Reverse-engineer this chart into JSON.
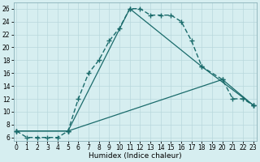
{
  "xlabel": "Humidex (Indice chaleur)",
  "background_color": "#d6eef0",
  "grid_color": "#b8d8dc",
  "line_color": "#1a6b6b",
  "series1": {
    "x": [
      0,
      1,
      2,
      3,
      4,
      5,
      6,
      7,
      8,
      9,
      10,
      11,
      12,
      13,
      14,
      15,
      16,
      17,
      18,
      20,
      21,
      22,
      23
    ],
    "y": [
      7,
      6,
      6,
      6,
      6,
      7,
      12,
      16,
      18,
      21,
      23,
      26,
      26,
      25,
      25,
      25,
      24,
      21,
      17,
      15,
      12,
      12,
      11
    ]
  },
  "series2": {
    "x": [
      0,
      5,
      11,
      18,
      23
    ],
    "y": [
      7,
      7,
      26,
      17,
      11
    ]
  },
  "series3": {
    "x": [
      0,
      5,
      20,
      23
    ],
    "y": [
      7,
      7,
      15,
      11
    ]
  },
  "xlim": [
    -0.3,
    23.3
  ],
  "ylim": [
    5.5,
    27
  ],
  "yticks": [
    6,
    8,
    10,
    12,
    14,
    16,
    18,
    20,
    22,
    24,
    26
  ],
  "xticks": [
    0,
    1,
    2,
    3,
    4,
    5,
    6,
    7,
    8,
    9,
    10,
    11,
    12,
    13,
    14,
    15,
    16,
    17,
    18,
    19,
    20,
    21,
    22,
    23
  ],
  "tick_labelsize": 5.5,
  "xlabel_fontsize": 6.5
}
